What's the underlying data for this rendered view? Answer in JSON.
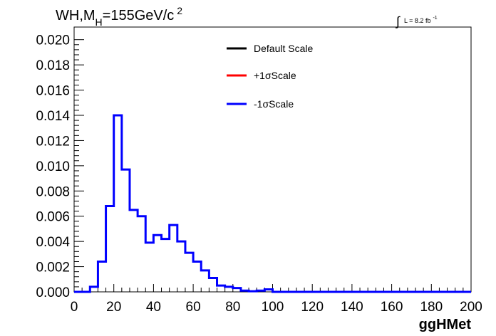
{
  "chart_data": {
    "type": "histogram",
    "title_main": "WH,M",
    "title_sub": "H",
    "title_rest": "=155GeV/c",
    "title_sup": "2",
    "lumi_label": "L = 8.2 fb",
    "lumi_sup": "-1",
    "xlabel": "ggHMet",
    "ylabel": "",
    "xlim": [
      0,
      200
    ],
    "ylim": [
      0,
      0.021
    ],
    "x_ticks": [
      "0",
      "20",
      "40",
      "60",
      "80",
      "100",
      "120",
      "140",
      "160",
      "180",
      "200"
    ],
    "y_ticks": [
      "0.000",
      "0.002",
      "0.004",
      "0.006",
      "0.008",
      "0.010",
      "0.012",
      "0.014",
      "0.016",
      "0.018",
      "0.020"
    ],
    "bin_width": 4,
    "bin_edges_start": 0,
    "legend": [
      {
        "label": "Default Scale",
        "color": "#000000"
      },
      {
        "label": "+1σScale",
        "color": "#ff0000"
      },
      {
        "label": "-1σScale",
        "color": "#0000ff"
      }
    ],
    "series": [
      {
        "name": "-1σScale",
        "color": "#0000ff",
        "values": [
          0.0,
          0.0,
          0.0004,
          0.0024,
          0.0068,
          0.014,
          0.0097,
          0.0065,
          0.006,
          0.0039,
          0.0045,
          0.0042,
          0.0053,
          0.004,
          0.0031,
          0.0024,
          0.0017,
          0.0011,
          0.0005,
          0.0004,
          0.0003,
          0.0001,
          5e-05,
          0.0001,
          0.0002,
          0.0,
          0.0,
          0.0,
          0.0,
          0.0,
          0.0,
          0.0,
          0.0,
          0.0,
          0.0,
          0.0,
          0.0,
          0.0,
          0.0,
          0.0,
          0.0,
          0.0,
          0.0,
          0.0,
          0.0,
          0.0,
          0.0,
          0.0,
          0.0,
          0.0
        ]
      }
    ]
  }
}
